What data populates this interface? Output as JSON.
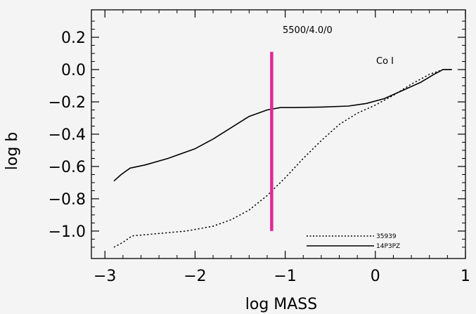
{
  "chart_data": {
    "type": "line",
    "xlabel": "log MASS",
    "ylabel": "log b",
    "xlim": [
      -3.15,
      1.0
    ],
    "ylim": [
      -1.17,
      0.37
    ],
    "xticks": [
      -3,
      -2,
      -1,
      0,
      1
    ],
    "xtick_labels": [
      "−3",
      "−2",
      "−1",
      "0",
      "1"
    ],
    "yticks": [
      0.2,
      0.0,
      -0.2,
      -0.4,
      -0.6,
      -0.8,
      -1.0
    ],
    "ytick_labels": [
      "0.2",
      "0.0",
      "−0.2",
      "−0.4",
      "−0.6",
      "−0.8",
      "−1.0"
    ],
    "annotations": [
      "5500/4.0/0",
      "Co I"
    ],
    "grid": false,
    "legend_position": "bottom-right",
    "series": [
      {
        "name": "14P3PZ",
        "style": "solid",
        "x": [
          -2.9,
          -2.82,
          -2.72,
          -2.55,
          -2.3,
          -2.0,
          -1.8,
          -1.6,
          -1.4,
          -1.2,
          -1.05,
          -0.9,
          -0.6,
          -0.3,
          -0.1,
          0.1,
          0.3,
          0.5,
          0.65,
          0.75,
          0.85
        ],
        "y": [
          -0.69,
          -0.65,
          -0.61,
          -0.59,
          -0.55,
          -0.49,
          -0.43,
          -0.36,
          -0.29,
          -0.25,
          -0.235,
          -0.235,
          -0.232,
          -0.226,
          -0.21,
          -0.18,
          -0.13,
          -0.08,
          -0.03,
          0.0,
          0.0
        ]
      },
      {
        "name": "35939",
        "style": "dotted",
        "x": [
          -2.9,
          -2.8,
          -2.7,
          -2.4,
          -2.1,
          -1.8,
          -1.6,
          -1.4,
          -1.2,
          -1.0,
          -0.8,
          -0.6,
          -0.4,
          -0.2,
          0.0,
          0.2,
          0.4,
          0.6,
          0.75,
          0.85
        ],
        "y": [
          -1.1,
          -1.07,
          -1.03,
          -1.015,
          -1.0,
          -0.97,
          -0.93,
          -0.87,
          -0.78,
          -0.67,
          -0.55,
          -0.44,
          -0.34,
          -0.27,
          -0.22,
          -0.16,
          -0.09,
          -0.03,
          0.0,
          0.0
        ]
      }
    ],
    "marker_line": {
      "x": -1.15,
      "y_from": -1.0,
      "y_to": 0.11,
      "color": "#e0289a"
    }
  }
}
